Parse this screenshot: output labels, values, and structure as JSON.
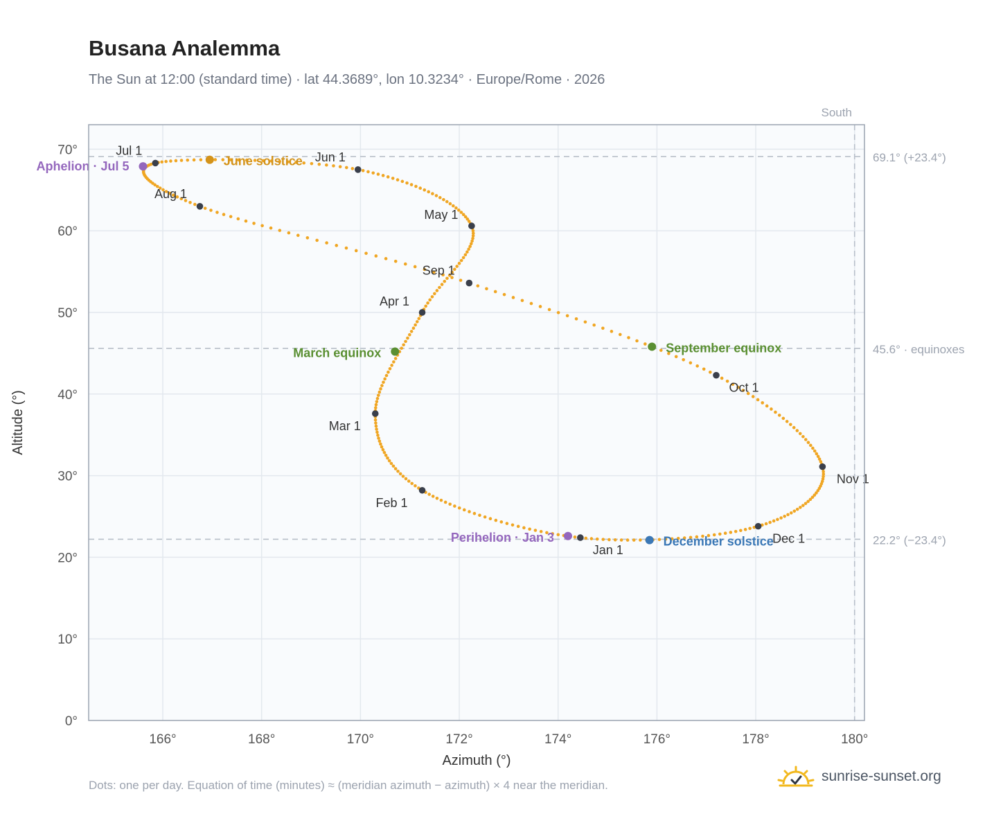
{
  "header": {
    "title": "Busana Analemma",
    "subtitle": "The Sun at 12:00 (standard time) · lat 44.3689°, lon 10.3234° · Europe/Rome · 2026"
  },
  "footer": {
    "note": "Dots: one per day. Equation of time (minutes) ≈ (meridian azimuth − azimuth) × 4 near the meridian.",
    "brand": "sunrise-sunset.org"
  },
  "colors": {
    "curve": "#f0a623",
    "month_dot": "#3a3f4b",
    "solstice_june": "#d4931a",
    "equinox": "#5a8f32",
    "solstice_december": "#3b78b6",
    "apsis": "#9467bd",
    "reference": "#9ca3af",
    "grid": "#e3e8ee",
    "plot_bg": "#f9fbfd",
    "frame": "#9aa3b0"
  },
  "chart_data": {
    "type": "scatter",
    "xlabel": "Azimuth (°)",
    "ylabel": "Altitude (°)",
    "xlim": [
      164.5,
      180.2
    ],
    "ylim": [
      0,
      73
    ],
    "x_ticks": [
      166,
      168,
      170,
      172,
      174,
      176,
      178,
      180
    ],
    "x_tick_labels": [
      "166°",
      "168°",
      "170°",
      "172°",
      "174°",
      "176°",
      "178°",
      "180°"
    ],
    "y_ticks": [
      0,
      10,
      20,
      30,
      40,
      50,
      60,
      70
    ],
    "y_tick_labels": [
      "0°",
      "10°",
      "20°",
      "30°",
      "40°",
      "50°",
      "60°",
      "70°"
    ],
    "grid": true,
    "reference_lines": [
      {
        "axis": "y",
        "value": 69.1,
        "label": "69.1° (+23.4°)"
      },
      {
        "axis": "y",
        "value": 45.6,
        "label": "45.6° · equinoxes"
      },
      {
        "axis": "y",
        "value": 22.2,
        "label": "22.2° (−23.4°)"
      },
      {
        "axis": "x",
        "value": 180,
        "label": "South"
      }
    ],
    "month_points": [
      {
        "label": "Jan 1",
        "azimuth": 174.45,
        "altitude": 22.4
      },
      {
        "label": "Feb 1",
        "azimuth": 171.25,
        "altitude": 28.2
      },
      {
        "label": "Mar 1",
        "azimuth": 170.3,
        "altitude": 37.6
      },
      {
        "label": "Apr 1",
        "azimuth": 171.25,
        "altitude": 50.0
      },
      {
        "label": "May 1",
        "azimuth": 172.25,
        "altitude": 60.6
      },
      {
        "label": "Jun 1",
        "azimuth": 169.95,
        "altitude": 67.5
      },
      {
        "label": "Jul 1",
        "azimuth": 165.85,
        "altitude": 68.3
      },
      {
        "label": "Aug 1",
        "azimuth": 166.75,
        "altitude": 63.0
      },
      {
        "label": "Sep 1",
        "azimuth": 172.2,
        "altitude": 53.6
      },
      {
        "label": "Oct 1",
        "azimuth": 177.2,
        "altitude": 42.3
      },
      {
        "label": "Nov 1",
        "azimuth": 179.35,
        "altitude": 31.1
      },
      {
        "label": "Dec 1",
        "azimuth": 178.05,
        "altitude": 23.8
      }
    ],
    "events": [
      {
        "label": "June solstice",
        "azimuth": 166.95,
        "altitude": 68.7,
        "key": "solstice_june"
      },
      {
        "label": "March equinox",
        "azimuth": 170.7,
        "altitude": 45.2,
        "key": "equinox"
      },
      {
        "label": "September equinox",
        "azimuth": 175.9,
        "altitude": 45.8,
        "key": "equinox"
      },
      {
        "label": "December solstice",
        "azimuth": 175.85,
        "altitude": 22.1,
        "key": "solstice_december"
      },
      {
        "label": "Aphelion · Jul 5",
        "azimuth": 165.6,
        "altitude": 67.9,
        "key": "apsis"
      },
      {
        "label": "Perihelion · Jan 3",
        "azimuth": 174.2,
        "altitude": 22.6,
        "key": "apsis"
      }
    ]
  }
}
